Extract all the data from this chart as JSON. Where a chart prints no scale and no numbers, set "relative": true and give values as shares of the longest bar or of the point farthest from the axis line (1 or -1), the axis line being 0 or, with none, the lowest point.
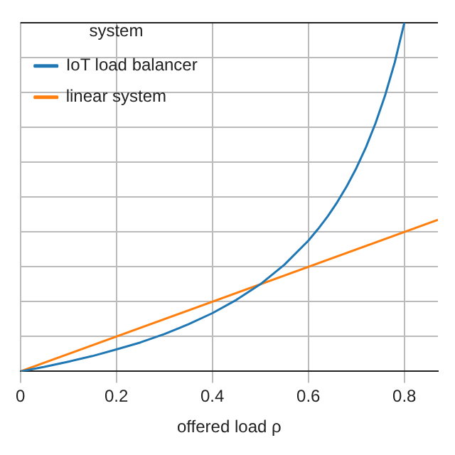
{
  "chart_data": {
    "type": "line",
    "xlabel": "offered load ρ",
    "legend_title": "system",
    "relative": true,
    "x": [
      0,
      0.05,
      0.1,
      0.15,
      0.2,
      0.25,
      0.3,
      0.35,
      0.4,
      0.45,
      0.5,
      0.55,
      0.6,
      0.62,
      0.64,
      0.66,
      0.68,
      0.7,
      0.72,
      0.74,
      0.76,
      0.78,
      0.8
    ],
    "xlim": [
      0,
      0.87
    ],
    "xticks": [
      {
        "value": 0,
        "label": "0"
      },
      0.2,
      0.4,
      0.6,
      0.8
    ],
    "series": [
      {
        "name": "IoT load balancer",
        "color": "#1f77b4",
        "values": [
          0,
          0.013,
          0.028,
          0.044,
          0.063,
          0.083,
          0.107,
          0.135,
          0.167,
          0.205,
          0.25,
          0.306,
          0.375,
          0.408,
          0.444,
          0.485,
          0.531,
          0.583,
          0.643,
          0.712,
          0.792,
          0.886,
          1
        ]
      },
      {
        "name": "linear system",
        "color": "#ff7f0e",
        "x": [
          0,
          0.87
        ],
        "values": [
          0,
          0.435
        ]
      }
    ],
    "grid": true,
    "legend": "top left",
    "marker": "none",
    "line_style": "solid"
  }
}
